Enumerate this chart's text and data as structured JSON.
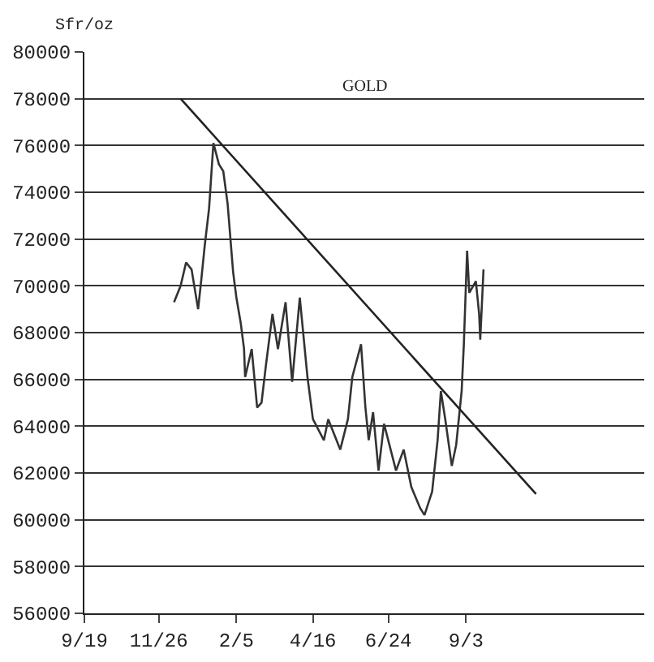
{
  "chart_data": {
    "type": "line",
    "title": "GOLD",
    "ylabel": "Sfr/oz",
    "xlim": [
      "2000-09-19",
      "2002-02-13"
    ],
    "ylim": [
      56000,
      80000
    ],
    "xticks": [
      {
        "value": "2000-09-19",
        "label": "9/19"
      },
      {
        "value": "2000-11-26",
        "label": "11/26"
      },
      {
        "value": "2001-02-05",
        "label": "2/5"
      },
      {
        "value": "2001-04-16",
        "label": "4/16"
      },
      {
        "value": "2001-06-24",
        "label": "6/24"
      },
      {
        "value": "2001-09-03",
        "label": "9/3"
      }
    ],
    "yticks": [
      56000,
      58000,
      60000,
      62000,
      64000,
      66000,
      68000,
      70000,
      72000,
      74000,
      76000,
      78000,
      80000
    ],
    "grid": "y",
    "marker": "none",
    "line_style": "solid",
    "series": [
      {
        "color": "#333333",
        "x": [
          "2000-12-10",
          "2000-12-16",
          "2000-12-21",
          "2000-12-26",
          "2001-01-01",
          "2001-01-04",
          "2001-01-07",
          "2001-01-11",
          "2001-01-15",
          "2001-01-20",
          "2001-01-24",
          "2001-01-28",
          "2001-02-02",
          "2001-02-05",
          "2001-02-09",
          "2001-02-12",
          "2001-02-13",
          "2001-02-19",
          "2001-02-24",
          "2001-02-28",
          "2001-03-04",
          "2001-03-10",
          "2001-03-15",
          "2001-03-22",
          "2001-03-28",
          "2001-04-04",
          "2001-04-11",
          "2001-04-16",
          "2001-04-26",
          "2001-04-30",
          "2001-05-11",
          "2001-05-18",
          "2001-05-22",
          "2001-05-30",
          "2001-06-03",
          "2001-06-06",
          "2001-06-10",
          "2001-06-15",
          "2001-06-20",
          "2001-07-01",
          "2001-07-08",
          "2001-07-15",
          "2001-07-23",
          "2001-07-27",
          "2001-08-03",
          "2001-08-08",
          "2001-08-11",
          "2001-08-15",
          "2001-08-21",
          "2001-08-25",
          "2001-08-30",
          "2001-09-01",
          "2001-09-04",
          "2001-09-06",
          "2001-09-12",
          "2001-09-15",
          "2001-09-16",
          "2001-09-19"
        ],
        "values": [
          69300,
          70000,
          71000,
          70700,
          69000,
          70300,
          71700,
          73300,
          76100,
          75200,
          74900,
          73500,
          70600,
          69500,
          68400,
          67300,
          66100,
          67300,
          64800,
          65000,
          66600,
          68800,
          67300,
          69300,
          65900,
          69500,
          66100,
          64300,
          63400,
          64300,
          63000,
          64300,
          66100,
          67500,
          64800,
          63400,
          64600,
          62100,
          64100,
          62100,
          63000,
          61400,
          60500,
          60200,
          61200,
          63400,
          65500,
          64300,
          62300,
          63200,
          65500,
          67500,
          71500,
          69700,
          70200,
          68800,
          67700,
          70700
        ]
      },
      {
        "color": "#222222",
        "x": [
          "2000-12-16",
          "2001-11-06"
        ],
        "values": [
          78000,
          61100
        ]
      }
    ]
  }
}
